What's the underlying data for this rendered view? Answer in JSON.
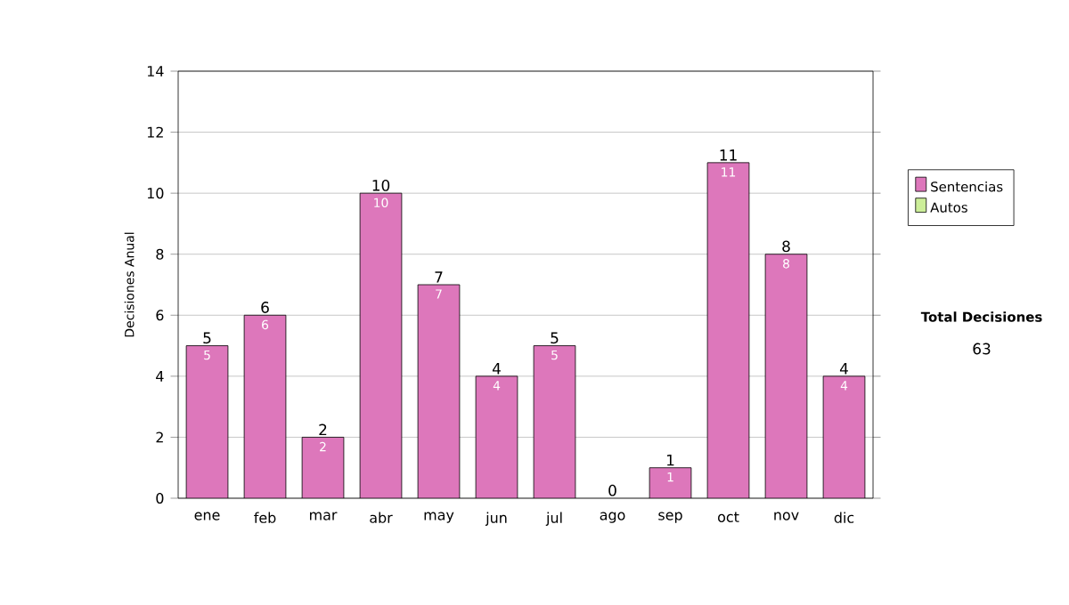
{
  "chart_data": {
    "type": "bar",
    "stacked": true,
    "ylabel": "Decisiones Anual",
    "categories": [
      "ene",
      "feb",
      "mar",
      "abr",
      "may",
      "jun",
      "jul",
      "ago",
      "sep",
      "oct",
      "nov",
      "dic"
    ],
    "series": [
      {
        "name": "Sentencias",
        "color": "#dd77bb",
        "values": [
          5,
          6,
          2,
          10,
          7,
          4,
          5,
          0,
          1,
          11,
          8,
          4
        ],
        "value_labels": [
          "5",
          "6",
          "2",
          "10",
          "7",
          "4",
          "5",
          null,
          "1",
          "11",
          "8",
          "4"
        ]
      },
      {
        "name": "Autos",
        "color": "#ccee99",
        "values": [
          0,
          0,
          0,
          0,
          0,
          0,
          0,
          0,
          0,
          0,
          0,
          0
        ]
      }
    ],
    "totals": [
      "5",
      "6",
      "2",
      "10",
      "7",
      "4",
      "5",
      "0",
      "1",
      "11",
      "8",
      "4"
    ],
    "ylim": [
      0,
      14
    ],
    "yticks": [
      0,
      2,
      4,
      6,
      8,
      10,
      12,
      14
    ],
    "grid": "y",
    "legend": "right",
    "annotations": [
      "Total Decisiones",
      "63"
    ]
  }
}
